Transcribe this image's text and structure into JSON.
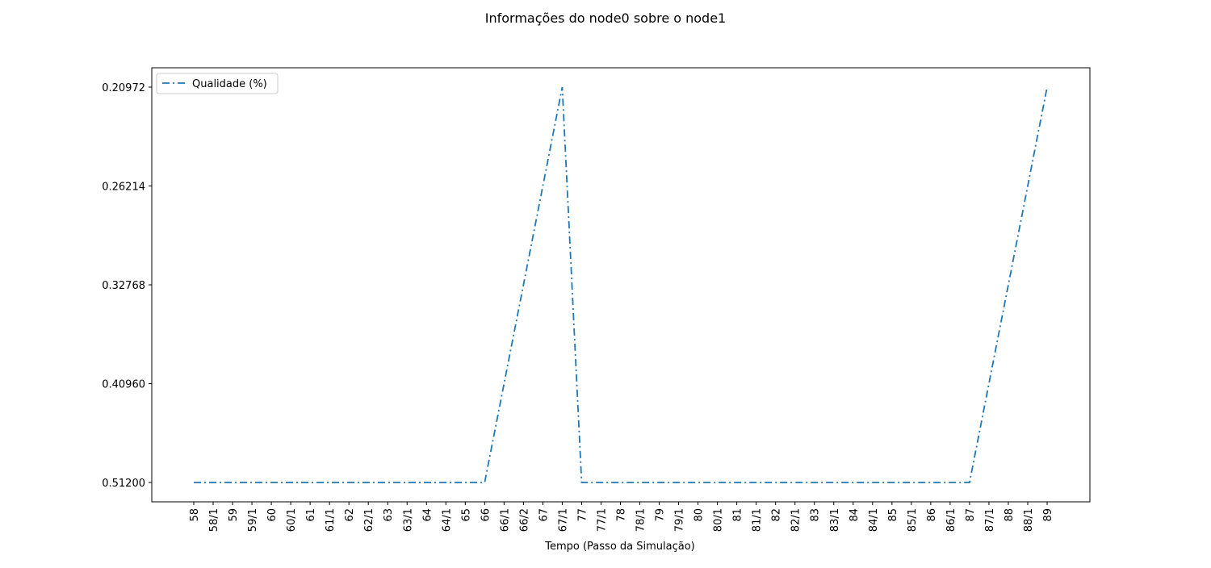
{
  "chart_data": {
    "type": "line",
    "title": "Informações do node0 sobre o node1",
    "x_label": "Tempo (Passo da Simulação)",
    "categories": [
      "58",
      "58/1",
      "59",
      "59/1",
      "60",
      "60/1",
      "61",
      "61/1",
      "62",
      "62/1",
      "63",
      "63/1",
      "64",
      "64/1",
      "65",
      "66",
      "66/1",
      "66/2",
      "67",
      "67/1",
      "77",
      "77/1",
      "78",
      "78/1",
      "79",
      "79/1",
      "80",
      "80/1",
      "81",
      "81/1",
      "82",
      "82/1",
      "83",
      "83/1",
      "84",
      "84/1",
      "85",
      "85/1",
      "86",
      "86/1",
      "87",
      "87/1",
      "88",
      "88/1",
      "89"
    ],
    "series": [
      {
        "name": "Qualidade (%)",
        "color": "#1f77b4",
        "linestyle": "dashdot",
        "values": [
          0.512,
          0.512,
          0.512,
          0.512,
          0.512,
          0.512,
          0.512,
          0.512,
          0.512,
          0.512,
          0.512,
          0.512,
          0.512,
          0.512,
          0.512,
          0.512,
          0.4096,
          0.32768,
          0.26214,
          0.20972,
          0.512,
          0.512,
          0.512,
          0.512,
          0.512,
          0.512,
          0.512,
          0.512,
          0.512,
          0.512,
          0.512,
          0.512,
          0.512,
          0.512,
          0.512,
          0.512,
          0.512,
          0.512,
          0.512,
          0.512,
          0.512,
          0.4096,
          0.32768,
          0.26214,
          0.20972
        ]
      }
    ],
    "y_scale": "categorical",
    "yticks": [
      {
        "value": 0.512,
        "label": "0.51200"
      },
      {
        "value": 0.4096,
        "label": "0.40960"
      },
      {
        "value": 0.32768,
        "label": "0.32768"
      },
      {
        "value": 0.26214,
        "label": "0.26214"
      },
      {
        "value": 0.20972,
        "label": "0.20972"
      }
    ],
    "legend": "upper left",
    "grid": false
  }
}
